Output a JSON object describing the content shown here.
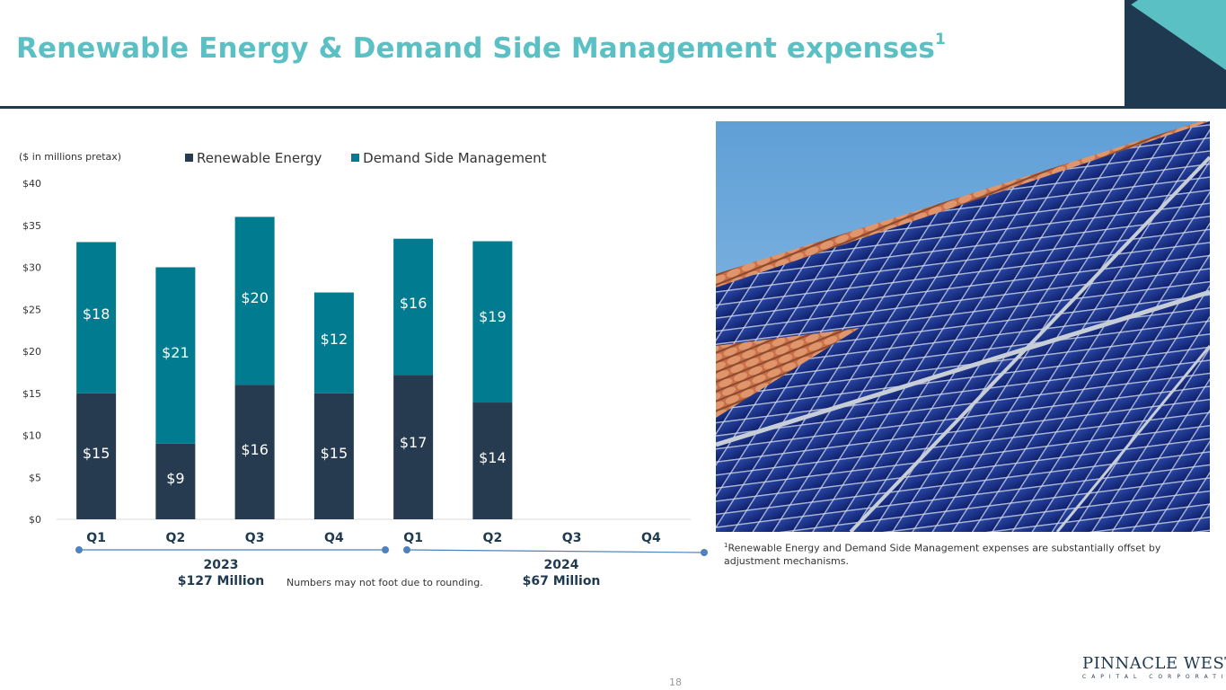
{
  "header": {
    "title": "Renewable Energy & Demand Side Management expenses",
    "title_superscript": "1",
    "accent_color": "#5bc0c4",
    "navy_color": "#1f3a50",
    "teal_color": "#007b8f"
  },
  "chart_data": {
    "type": "bar",
    "stacked": true,
    "units_label": "($ in millions pretax)",
    "categories": [
      "Q1",
      "Q2",
      "Q3",
      "Q4",
      "Q1",
      "Q2",
      "Q3",
      "Q4"
    ],
    "series": [
      {
        "name": "Renewable Energy",
        "color": "#263b50",
        "values": [
          15,
          9,
          16,
          15,
          17.2,
          13.9,
          null,
          null
        ],
        "labels": [
          "$15",
          "$9",
          "$16",
          "$15",
          "$17",
          "$14",
          "",
          ""
        ]
      },
      {
        "name": "Demand Side Management",
        "color": "#007b8f",
        "values": [
          18,
          21,
          20,
          12,
          16.2,
          19.2,
          null,
          null
        ],
        "labels": [
          "$18",
          "$21",
          "$20",
          "$12",
          "$16",
          "$19",
          "",
          ""
        ]
      }
    ],
    "yticks": [
      "$0",
      "$5",
      "$10",
      "$15",
      "$20",
      "$25",
      "$30",
      "$35",
      "$40"
    ],
    "ylim": [
      0,
      40
    ],
    "groups": [
      {
        "year": "2023",
        "total": "$127 Million"
      },
      {
        "year": "2024",
        "total": "$67 Million"
      }
    ],
    "grid": false,
    "legend_position": "top"
  },
  "notes": {
    "rounding": "Numbers may not foot due to rounding.",
    "footnote_marker": "1",
    "footnote": "Renewable Energy and Demand Side Management expenses are substantially offset by adjustment mechanisms."
  },
  "footer": {
    "page_number": "18",
    "logo_main": "PINNACLE WEST",
    "logo_sub": "CAPITAL CORPORATION"
  }
}
